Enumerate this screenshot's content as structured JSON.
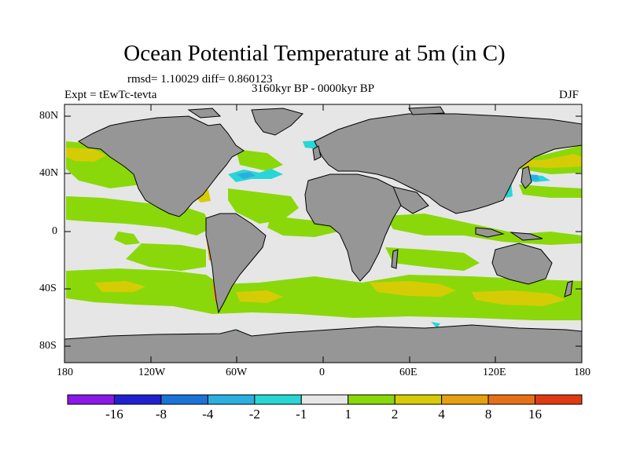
{
  "title": "Ocean Potential Temperature at 5m (in C)",
  "stats": "rmsd= 1.10029 diff= 0.860123",
  "period": "3160kyr BP - 0000kyr BP",
  "experiment": "Expt = tEwTc-tevta",
  "season": "DJF",
  "lat_ticks": [
    "80N",
    "40N",
    "0",
    "40S",
    "80S"
  ],
  "lon_ticks": [
    "180",
    "120W",
    "60W",
    "0",
    "60E",
    "120E",
    "180"
  ],
  "colors": {
    "land": "#969696",
    "ocean_neutral": "#e6e6e6",
    "coastline": "#000000"
  },
  "colorbar": {
    "colors": [
      "#8a18e6",
      "#2020d0",
      "#1a74d8",
      "#2ab0e0",
      "#28d6d6",
      "#e6e6e6",
      "#8ad80a",
      "#d6cc06",
      "#e6a010",
      "#e67018",
      "#e03a10"
    ],
    "labels": [
      "-16",
      "-8",
      "-4",
      "-2",
      "-1",
      "1",
      "2",
      "4",
      "8",
      "16"
    ]
  }
}
